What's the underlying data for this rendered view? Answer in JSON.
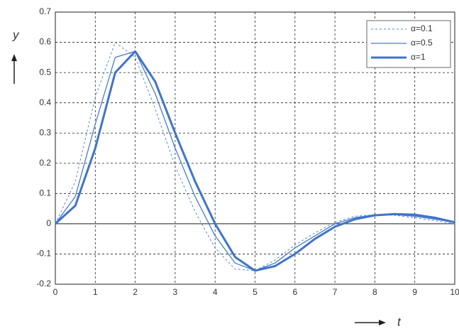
{
  "chart_data": {
    "type": "line",
    "x_label": "t",
    "y_label": "y",
    "x": [
      0,
      0.5,
      1,
      1.5,
      2,
      2.5,
      3,
      3.5,
      4,
      4.5,
      5,
      5.5,
      6,
      6.5,
      7,
      7.5,
      8,
      8.5,
      9,
      9.5,
      10
    ],
    "series": [
      {
        "name": "α=0.1",
        "color": "#5b86cf",
        "dash": "3,3",
        "width": 1,
        "values": [
          0,
          0.14,
          0.42,
          0.6,
          0.55,
          0.38,
          0.19,
          0.04,
          -0.08,
          -0.15,
          -0.155,
          -0.12,
          -0.07,
          -0.03,
          0.005,
          0.025,
          0.03,
          0.028,
          0.02,
          0.01,
          0
        ]
      },
      {
        "name": "α=0.5",
        "color": "#4a7bc8",
        "dash": "none",
        "width": 1.3,
        "values": [
          0,
          0.09,
          0.33,
          0.55,
          0.57,
          0.43,
          0.25,
          0.09,
          -0.04,
          -0.13,
          -0.155,
          -0.13,
          -0.08,
          -0.04,
          0,
          0.02,
          0.03,
          0.03,
          0.025,
          0.015,
          0.005
        ]
      },
      {
        "name": "α=1",
        "color": "#3f74c9",
        "dash": "none",
        "width": 3,
        "values": [
          0,
          0.06,
          0.25,
          0.5,
          0.57,
          0.47,
          0.3,
          0.14,
          0,
          -0.11,
          -0.155,
          -0.14,
          -0.1,
          -0.05,
          -0.01,
          0.015,
          0.028,
          0.032,
          0.03,
          0.02,
          0.005
        ]
      }
    ],
    "xlim": [
      0,
      10
    ],
    "xticks": [
      0,
      1,
      2,
      3,
      4,
      5,
      6,
      7,
      8,
      9,
      10
    ],
    "ylim": [
      -0.2,
      0.7
    ],
    "yticks": [
      -0.2,
      -0.1,
      0,
      0.1,
      0.2,
      0.3,
      0.4,
      0.5,
      0.6,
      0.7
    ],
    "grid": true,
    "legend": "upper right"
  }
}
